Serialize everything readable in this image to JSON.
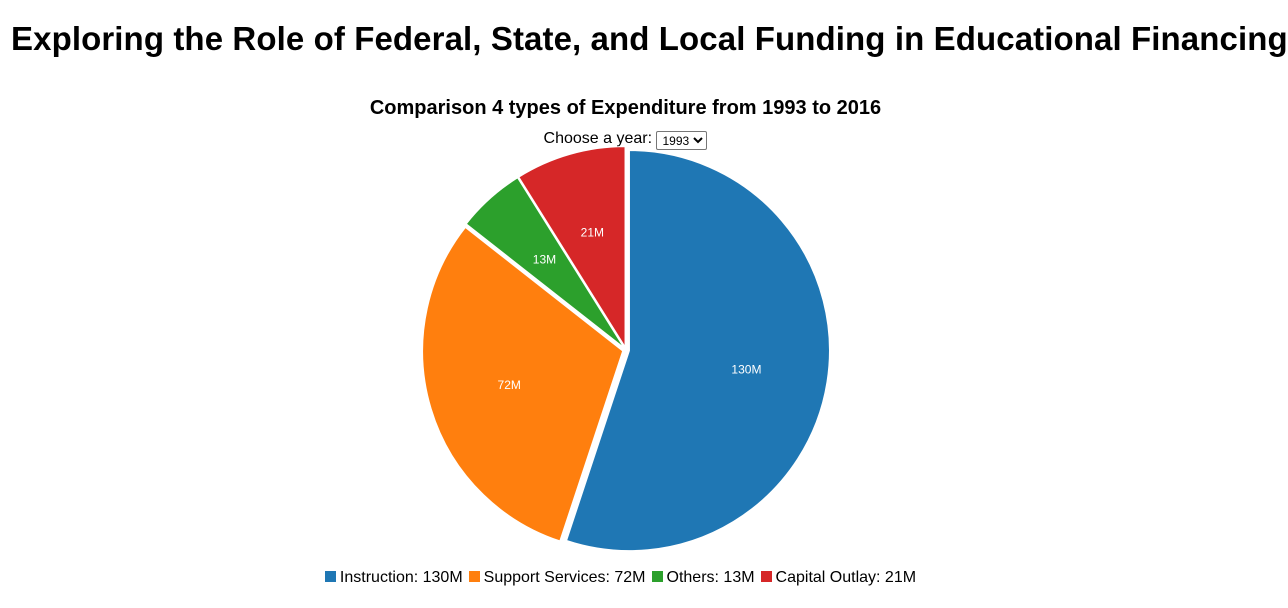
{
  "page": {
    "title": "Exploring the Role of Federal, State, and Local Funding in Educational Financing"
  },
  "controls": {
    "year_label": "Choose a year:",
    "year_selected": "1993"
  },
  "chart_data": {
    "type": "pie",
    "title": "Comparison 4 types of Expenditure from 1993 to 2016",
    "categories": [
      "Instruction",
      "Support Services",
      "Others",
      "Capital Outlay"
    ],
    "values": [
      130,
      72,
      13,
      21
    ],
    "value_labels": [
      "130M",
      "72M",
      "13M",
      "21M"
    ],
    "legend_labels": [
      "Instruction: 130M",
      "Support Services: 72M",
      "Others: 13M",
      "Capital Outlay: 21M"
    ],
    "colors": [
      "#1f77b4",
      "#ff7f0e",
      "#2ca02c",
      "#d62728"
    ],
    "legend_position": "bottom"
  }
}
